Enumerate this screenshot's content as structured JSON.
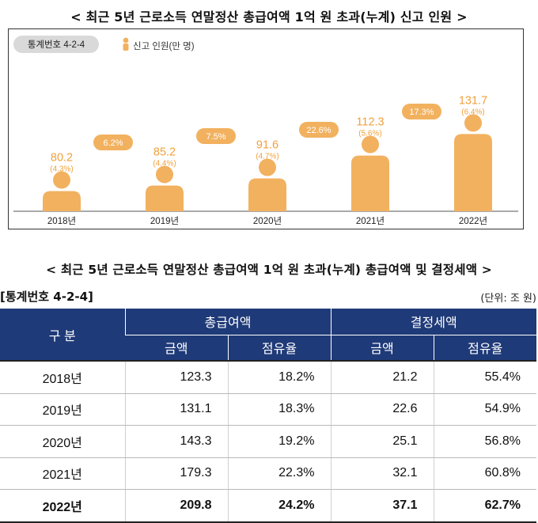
{
  "titles": {
    "chart": "< 최근 5년 근로소득 연말정산 총급여액 1억 원 초과(누계) 신고 인원 >",
    "table": "< 최근 5년 근로소득 연말정산 총급여액 1억 원 초과(누계) 총급여액 및 결정세액 >"
  },
  "chart_box": {
    "stat_code": "통계번호 4-2-4",
    "legend": "신고 인원(만 명)"
  },
  "chart_data": {
    "type": "bar",
    "categories": [
      "2018년",
      "2019년",
      "2020년",
      "2021년",
      "2022년"
    ],
    "values": [
      80.2,
      85.2,
      91.6,
      112.3,
      131.7
    ],
    "value_labels": [
      "80.2",
      "85.2",
      "91.6",
      "112.3",
      "131.7"
    ],
    "share_labels": [
      "(4.3%)",
      "(4.4%)",
      "(4.7%)",
      "(5.6%)",
      "(6.4%)"
    ],
    "growth_labels": [
      "6.2%",
      "7.5%",
      "22.6%",
      "17.3%"
    ],
    "series": [
      {
        "name": "신고 인원(만 명)",
        "values": [
          80.2,
          85.2,
          91.6,
          112.3,
          131.7
        ]
      }
    ],
    "bar_color": "#f2b15f",
    "label_color": "#f0a13c"
  },
  "table": {
    "stat_code": "[통계번호 4-2-4]",
    "unit": "(단위: 조 원)",
    "header": {
      "group": "구 분",
      "col_a": "총급여액",
      "col_b": "결정세액",
      "sub": [
        "금액",
        "점유율",
        "금액",
        "점유율"
      ]
    },
    "rows": [
      [
        "2018년",
        "123.3",
        "18.2%",
        "21.2",
        "55.4%"
      ],
      [
        "2019년",
        "131.1",
        "18.3%",
        "22.6",
        "54.9%"
      ],
      [
        "2020년",
        "143.3",
        "19.2%",
        "25.1",
        "56.8%"
      ],
      [
        "2021년",
        "179.3",
        "22.3%",
        "32.1",
        "60.8%"
      ],
      [
        "2022년",
        "209.8",
        "24.2%",
        "37.1",
        "62.7%"
      ]
    ]
  },
  "colors": {
    "header_bg": "#1f3a78",
    "accent": "#f2b15f",
    "pill_bg": "#d9d9d9"
  }
}
